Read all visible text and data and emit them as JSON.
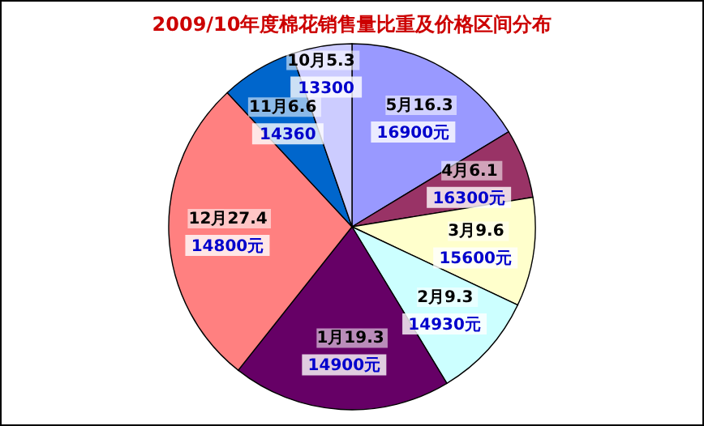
{
  "chart_data": {
    "type": "pie",
    "title": "2009/10年度棉花销售量比重及价格区间分布",
    "categories": [
      "5月",
      "4月",
      "3月",
      "2月",
      "1月",
      "12月",
      "11月",
      "10月"
    ],
    "values": [
      16.3,
      6.1,
      9.6,
      9.3,
      19.3,
      27.4,
      6.6,
      5.3
    ],
    "colors": [
      "#9999ff",
      "#993366",
      "#ffffcc",
      "#ccffff",
      "#660066",
      "#ff8080",
      "#0066cc",
      "#ccccff"
    ],
    "data_labels": true,
    "annotations": [
      "16900元",
      "16300元",
      "15600元",
      "14930元",
      "14900元",
      "14800元",
      "14360",
      "13300"
    ]
  }
}
